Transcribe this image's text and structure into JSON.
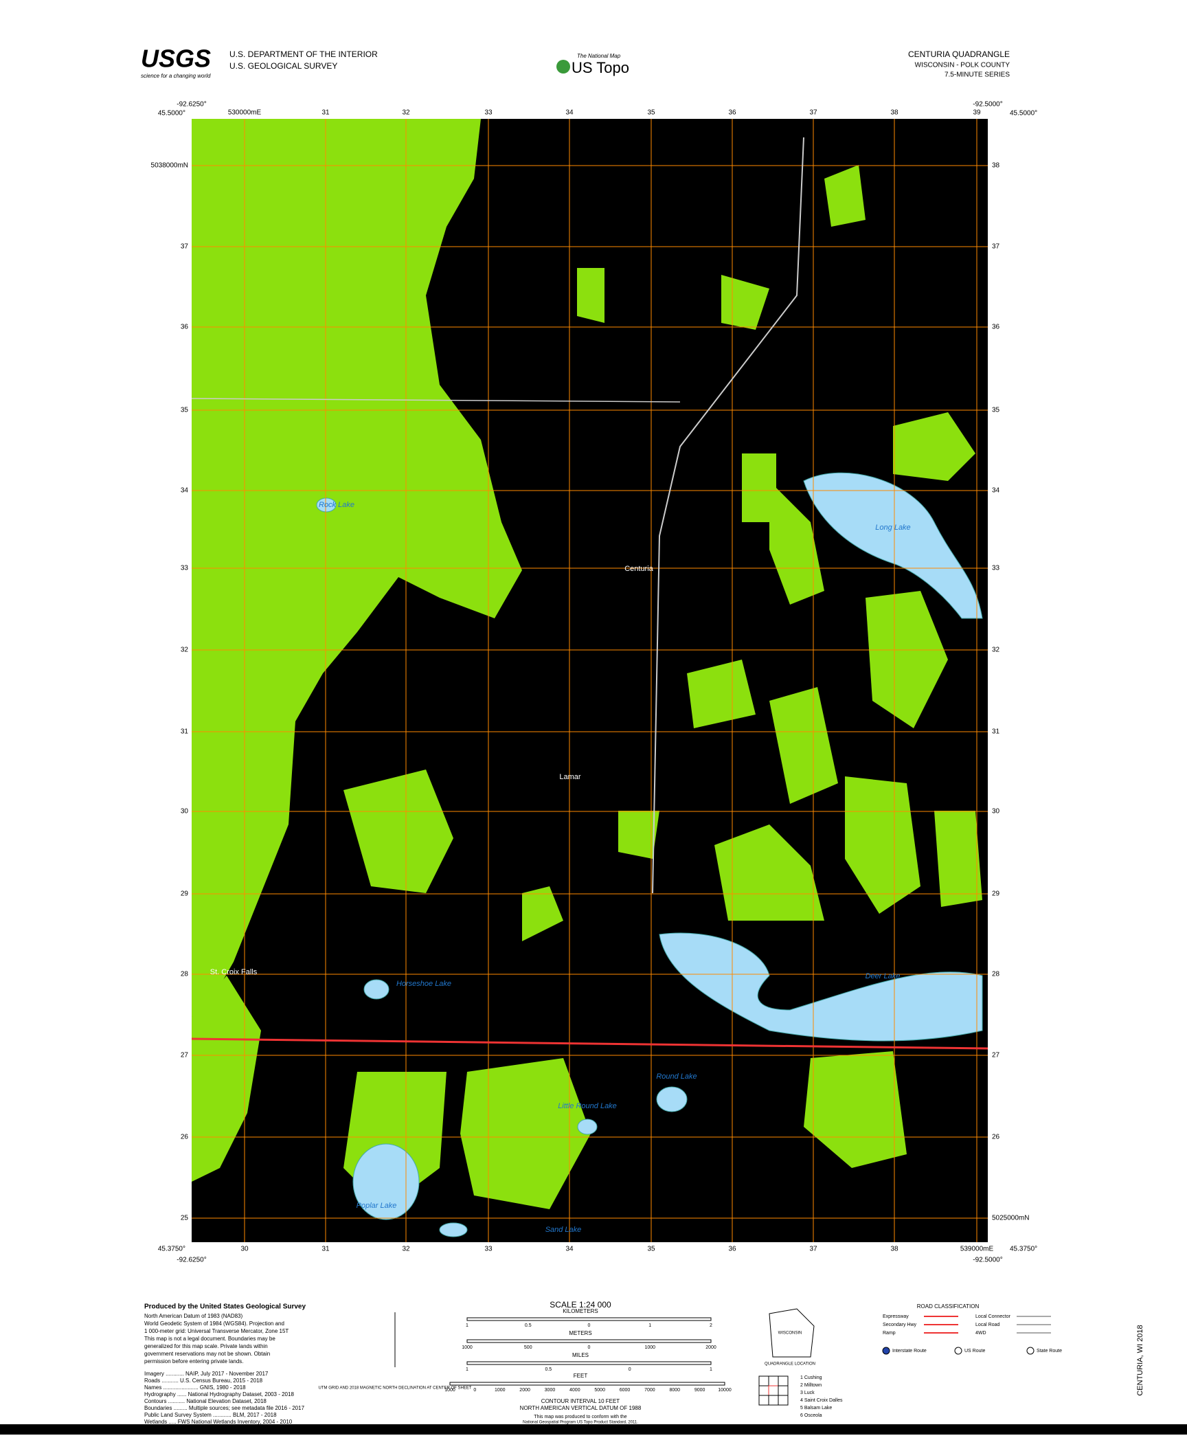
{
  "header": {
    "agency": [
      "U.S. DEPARTMENT OF THE INTERIOR",
      "U.S. GEOLOGICAL SURVEY"
    ],
    "logo": "USGS",
    "tagline": "science for a changing world",
    "national_map": "The National Map",
    "us_topo": "US Topo",
    "quad": "CENTURIA QUADRANGLE",
    "location": "WISCONSIN - POLK COUNTY",
    "series": "7.5-MINUTE SERIES"
  },
  "corners": {
    "nw_lat": "45.5000°",
    "nw_lon": "-92.6250°",
    "ne_lat": "45.5000°",
    "ne_lon": "-92.5000°",
    "sw_lat": "45.3750°",
    "sw_lon": "-92.6250°",
    "se_lat": "45.3750°",
    "se_lon": "-92.5000°"
  },
  "grid": {
    "easting_top": [
      "530000mE",
      "31",
      "32",
      "33",
      "34",
      "35",
      "36",
      "37",
      "38",
      "39"
    ],
    "easting_bottom": [
      "30",
      "31",
      "32",
      "33",
      "34",
      "35",
      "36",
      "37",
      "38",
      "539000mE"
    ],
    "northing_left": [
      "5038000mN",
      "37",
      "36",
      "35",
      "34",
      "33",
      "32",
      "31",
      "30",
      "29",
      "28",
      "27",
      "26",
      "25"
    ],
    "northing_right": [
      "38",
      "37",
      "36",
      "35",
      "34",
      "33",
      "32",
      "31",
      "30",
      "29",
      "28",
      "27",
      "26",
      "5025000mN"
    ]
  },
  "places": [
    "Centuria",
    "Long Lake",
    "Deer Lake",
    "Poplar Lake",
    "Round Lake",
    "Little Round Lake",
    "Sand Lake",
    "Horseshoe Lake",
    "Lamar",
    "St. Croix Falls",
    "Rock Lake"
  ],
  "footer": {
    "produced": "Produced by the United States Geological Survey",
    "notes": [
      "North American Datum of 1983 (NAD83)",
      "World Geodetic System of 1984 (WGS84). Projection and",
      "1 000-meter grid: Universal Transverse Mercator, Zone 15T",
      "This map is not a legal document. Boundaries may be",
      "generalized for this map scale. Private lands within",
      "government reservations may not be shown. Obtain",
      "permission before entering private lands."
    ],
    "sources": [
      "Imagery ............ NAIP, July 2017 - November 2017",
      "Roads ........... U.S. Census Bureau, 2015 - 2018",
      "Names ....................... GNIS, 1980 - 2018",
      "Hydrography ...... National Hydrography Dataset, 2003 - 2018",
      "Contours ........... National Elevation Dataset, 2018",
      "Boundaries ......... Multiple sources; see metadata file 2016 - 2017",
      "Public Land Survey System ............ BLM, 2017 - 2018",
      "Wetlands ..... FWS National Wetlands Inventory, 2004 - 2010"
    ],
    "scale": "SCALE 1:24 000",
    "km": "KILOMETERS",
    "km_ticks": [
      "1",
      "0.5",
      "0",
      "1",
      "2"
    ],
    "meters": "METERS",
    "m_ticks": [
      "1000",
      "500",
      "0",
      "1000",
      "2000"
    ],
    "miles": "MILES",
    "mi_ticks": [
      "1",
      "0.5",
      "0",
      "1"
    ],
    "feet": "FEET",
    "ft_ticks": [
      "1000",
      "0",
      "1000",
      "2000",
      "3000",
      "4000",
      "5000",
      "6000",
      "7000",
      "8000",
      "9000",
      "10000"
    ],
    "contour": "CONTOUR INTERVAL 10 FEET",
    "datum": "NORTH AMERICAN VERTICAL DATUM OF 1988",
    "standards": "This map was produced to conform with the",
    "standards2": "National Geospatial Program US Topo Product Standard, 2011.",
    "decl": "UTM GRID AND 2018 MAGNETIC NORTH DECLINATION AT CENTER OF SHEET",
    "state": "WISCONSIN",
    "quad_loc": "QUADRANGLE LOCATION",
    "road_title": "ROAD CLASSIFICATION",
    "roads": [
      "Expressway",
      "Secondary Hwy",
      "Ramp",
      "Local Connector",
      "Local Road",
      "4WD"
    ],
    "routes": [
      "Interstate Route",
      "US Route",
      "State Route"
    ],
    "adjoining": [
      "1 Cushing",
      "2 Milltown",
      "3 Luck",
      "4 Saint Croix Dalles",
      "5 Balsam Lake",
      "6 Osceola"
    ],
    "side": "CENTURIA, WI 2018"
  }
}
